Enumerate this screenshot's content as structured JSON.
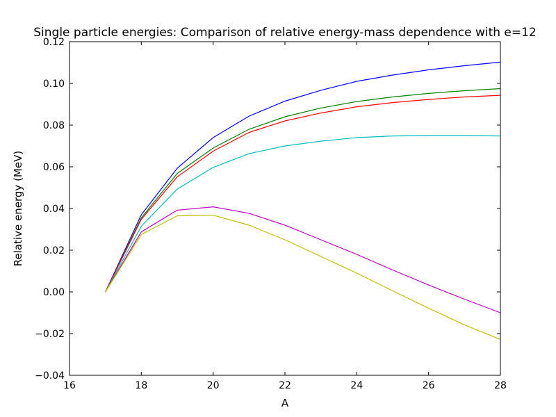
{
  "chart_data": {
    "type": "line",
    "title": "Single particle energies: Comparison of relative energy-mass dependence with e=12",
    "xlabel": "A",
    "ylabel": "Relative energy (MeV)",
    "xlim": [
      16,
      28
    ],
    "ylim": [
      -0.04,
      0.12
    ],
    "xticks": [
      16,
      18,
      20,
      22,
      24,
      26,
      28
    ],
    "xtick_labels": [
      "16",
      "18",
      "20",
      "22",
      "24",
      "26",
      "28"
    ],
    "yticks": [
      -0.04,
      -0.02,
      0.0,
      0.02,
      0.04,
      0.06,
      0.08,
      0.1,
      0.12
    ],
    "ytick_labels": [
      "−0.04",
      "−0.02",
      "0.00",
      "0.02",
      "0.04",
      "0.06",
      "0.08",
      "0.10",
      "0.12"
    ],
    "grid": false,
    "legend": "none",
    "x": [
      17,
      18,
      19,
      20,
      21,
      22,
      23,
      24,
      25,
      26,
      27,
      28
    ],
    "series": [
      {
        "color": "#0000ff",
        "values": [
          0.0,
          0.037,
          0.0593,
          0.074,
          0.0843,
          0.0915,
          0.0967,
          0.101,
          0.104,
          0.1065,
          0.1085,
          0.1102
        ]
      },
      {
        "color": "#008000",
        "values": [
          0.0,
          0.0355,
          0.0568,
          0.069,
          0.078,
          0.084,
          0.0882,
          0.0913,
          0.0935,
          0.0952,
          0.0965,
          0.0975
        ]
      },
      {
        "color": "#ff0000",
        "values": [
          0.0,
          0.0348,
          0.0552,
          0.0675,
          0.0765,
          0.082,
          0.0858,
          0.0888,
          0.0908,
          0.0923,
          0.0935,
          0.0943
        ]
      },
      {
        "color": "#00bfbf",
        "values": [
          0.0,
          0.0315,
          0.0493,
          0.0597,
          0.0663,
          0.07,
          0.0723,
          0.074,
          0.0748,
          0.075,
          0.075,
          0.0748
        ]
      },
      {
        "color": "#bf00bf",
        "values": [
          0.0,
          0.0288,
          0.0392,
          0.0408,
          0.0377,
          0.032,
          0.025,
          0.018,
          0.0105,
          0.0033,
          -0.0035,
          -0.01
        ]
      },
      {
        "color": "#bfbf00",
        "values": [
          0.0,
          0.0275,
          0.0365,
          0.0368,
          0.032,
          0.025,
          0.017,
          0.009,
          0.0005,
          -0.0078,
          -0.0158,
          -0.0228
        ]
      }
    ]
  }
}
